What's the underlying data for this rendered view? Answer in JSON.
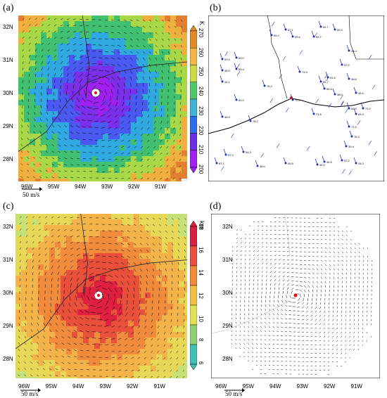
{
  "panels": [
    {
      "label": "(a)",
      "colorbar": {
        "unit": "K",
        "ticks": [
          "270",
          "260",
          "250",
          "240",
          "230",
          "220",
          "210",
          "200"
        ],
        "colors": [
          "#e08a2a",
          "#f2b64a",
          "#c8dc4a",
          "#4fc66a",
          "#3fb4d6",
          "#2f6ee6",
          "#6a2fe0",
          "#a020f0"
        ]
      },
      "y_ticks": [
        "32N",
        "31N",
        "30N",
        "29N",
        "28N"
      ],
      "x_ticks": [
        "96W",
        "95W",
        "94W",
        "93W",
        "92W",
        "91W"
      ],
      "scale": "50 m/s"
    },
    {
      "label": "(b)",
      "station_labels": [
        "67.1",
        "59.2",
        "52.7",
        "59.2",
        "59.7",
        "59.6",
        "44.0",
        "57.2",
        "46.6",
        "53.4",
        "53.0",
        "46.0",
        "53.4",
        "44.1",
        "51.5",
        "50.7",
        "54.6",
        "43.4",
        "38.0",
        "62.9",
        "71.0",
        "69.3",
        "71.5",
        "78.3",
        "39.4",
        "38.0",
        "57.2",
        "54.3",
        "67.1",
        "38.4",
        "45.0",
        "34.5",
        "57.2",
        "34.0",
        "49.5",
        "70.2",
        "78.2",
        "71.6",
        "81.0",
        "76.2",
        "73.3"
      ]
    },
    {
      "label": "(c)",
      "colorbar": {
        "unit": "km",
        "ticks": [
          "18",
          "16",
          "14",
          "12",
          "10",
          "8",
          "6"
        ],
        "colors": [
          "#d82040",
          "#e85040",
          "#f08a3c",
          "#f4c04a",
          "#e0e05a",
          "#90d070",
          "#40c0b0"
        ]
      },
      "y_ticks": [
        "32N",
        "31N",
        "30N",
        "29N",
        "28N"
      ],
      "x_ticks": [
        "96W",
        "95W",
        "94W",
        "93W",
        "92W",
        "91W"
      ],
      "scale": "50 m/s"
    },
    {
      "label": "(d)",
      "y_ticks": [
        "32N",
        "31N",
        "30N",
        "29N",
        "28N"
      ],
      "x_ticks": [
        "96W",
        "95W",
        "94W",
        "93W",
        "92W",
        "91W"
      ],
      "scale": "50 m/s"
    }
  ]
}
